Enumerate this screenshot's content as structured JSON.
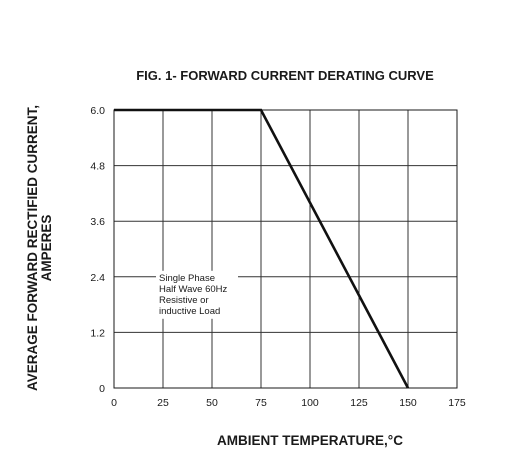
{
  "chart_data": {
    "type": "line",
    "title": "FIG. 1- FORWARD CURRENT DERATING CURVE",
    "xlabel": "AMBIENT TEMPERATURE,°C",
    "ylabel_lines": [
      "AVERAGE FORWARD RECTIFIED CURRENT,",
      "AMPERES"
    ],
    "xlim": [
      0,
      175
    ],
    "ylim": [
      0,
      6.0
    ],
    "x_ticks": [
      0,
      25,
      50,
      75,
      100,
      125,
      150,
      175
    ],
    "x_tick_labels": [
      "0",
      "25",
      "50",
      "75",
      "100",
      "125",
      "150",
      "175"
    ],
    "y_ticks": [
      0,
      1.2,
      2.4,
      3.6,
      4.8,
      6.0
    ],
    "y_tick_labels": [
      "0",
      "1.2",
      "2.4",
      "3.6",
      "4.8",
      "6.0"
    ],
    "grid": true,
    "series": [
      {
        "x": [
          0,
          75,
          150
        ],
        "y": [
          6.0,
          6.0,
          0
        ]
      }
    ],
    "annotation": {
      "lines": [
        "Single Phase",
        "Half Wave 60Hz",
        "Resistive or",
        "inductive Load"
      ],
      "x": 25,
      "y": 2.4
    }
  }
}
